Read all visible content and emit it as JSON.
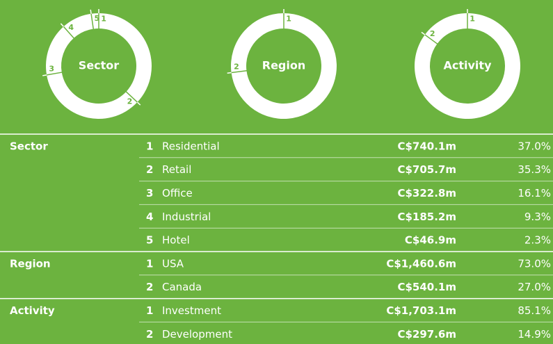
{
  "chart_data": [
    {
      "type": "donut",
      "title": "Sector",
      "ranks": [
        1,
        2,
        3,
        4,
        5
      ],
      "categories": [
        "Residential",
        "Retail",
        "Office",
        "Industrial",
        "Hotel"
      ],
      "amounts": [
        "C$740.1m",
        "C$705.7m",
        "C$322.8m",
        "C$185.2m",
        "C$46.9m"
      ],
      "values": [
        37.0,
        35.3,
        16.1,
        9.3,
        2.3
      ],
      "value_labels": [
        "37.0%",
        "35.3%",
        "16.1%",
        "9.3%",
        "2.3%"
      ],
      "color": "#ffffff"
    },
    {
      "type": "donut",
      "title": "Region",
      "ranks": [
        1,
        2
      ],
      "categories": [
        "USA",
        "Canada"
      ],
      "amounts": [
        "C$1,460.6m",
        "C$540.1m"
      ],
      "values": [
        73.0,
        27.0
      ],
      "value_labels": [
        "73.0%",
        "27.0%"
      ],
      "color": "#ffffff"
    },
    {
      "type": "donut",
      "title": "Activity",
      "ranks": [
        1,
        2
      ],
      "categories": [
        "Investment",
        "Development"
      ],
      "amounts": [
        "C$1,703.1m",
        "C$297.6m"
      ],
      "values": [
        85.1,
        14.9
      ],
      "value_labels": [
        "85.1%",
        "14.9%"
      ],
      "color": "#ffffff"
    }
  ]
}
